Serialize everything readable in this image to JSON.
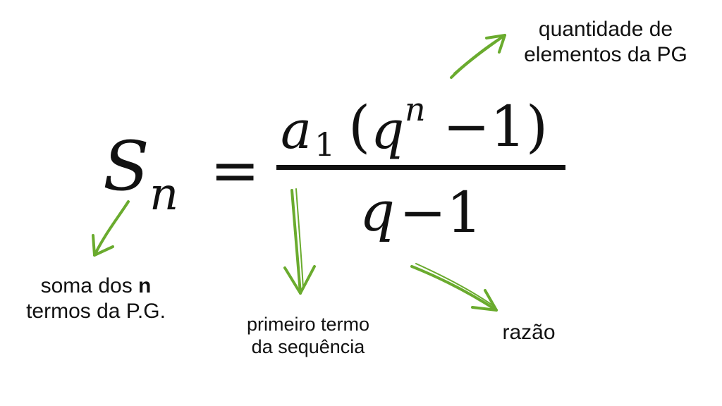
{
  "formula": {
    "lhs_base": "S",
    "lhs_sub": "n",
    "equals": "=",
    "num_a": "a",
    "num_a_sub": "1",
    "num_open": "(",
    "num_q": "q",
    "num_q_sup": "n",
    "num_rest": "−1)",
    "den_q": "q",
    "den_rest": "−1"
  },
  "labels": {
    "count": {
      "line1": "quantidade de",
      "line2": "elementos da PG"
    },
    "sum": {
      "line1_pre": "soma dos ",
      "line1_bold": "n",
      "line2": "termos da P.G."
    },
    "first": {
      "line1": "primeiro termo",
      "line2": "da sequência"
    },
    "ratio": {
      "line1": "razão"
    }
  },
  "colors": {
    "arrow": "#6aab2e",
    "ink": "#111111"
  }
}
